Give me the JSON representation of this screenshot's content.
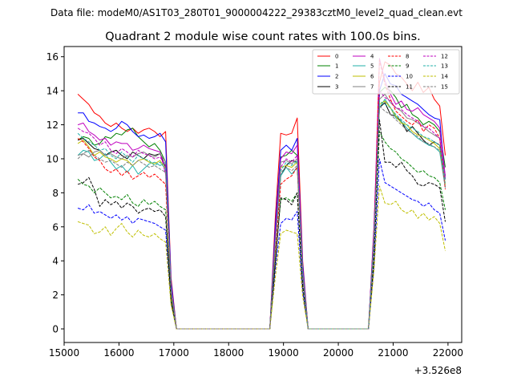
{
  "figure": {
    "suptitle": "Data file: modeM0/AS1T03_280T01_9000004222_29383cztM0_level2_quad_clean.evt",
    "title": "Quadrant 2 module wise count rates with 100.0s bins."
  },
  "chart_data": {
    "type": "line",
    "title": "Quadrant 2 module wise count rates with 100.0s bins.",
    "xlabel": "",
    "ylabel": "",
    "x_offset_label": "+3.526e8",
    "xlim": [
      15000,
      22250
    ],
    "ylim": [
      -0.8,
      16.6
    ],
    "xticks": [
      15000,
      16000,
      17000,
      18000,
      19000,
      20000,
      21000,
      22000
    ],
    "yticks": [
      0,
      2,
      4,
      6,
      8,
      10,
      12,
      14,
      16
    ],
    "xtick_labels": [
      "15000",
      "16000",
      "17000",
      "18000",
      "19000",
      "20000",
      "21000",
      "22000"
    ],
    "ytick_labels": [
      "0",
      "2",
      "4",
      "6",
      "8",
      "10",
      "12",
      "14",
      "16"
    ],
    "legend_position": "top-right",
    "x": [
      15250,
      15350,
      15450,
      15550,
      15650,
      15750,
      15850,
      15950,
      16050,
      16150,
      16250,
      16350,
      16450,
      16550,
      16650,
      16750,
      16850,
      16950,
      17050,
      17150,
      17250,
      17350,
      17450,
      17550,
      17650,
      17750,
      17850,
      17950,
      18050,
      18150,
      18250,
      18350,
      18450,
      18550,
      18650,
      18750,
      18850,
      18950,
      19050,
      19150,
      19250,
      19350,
      19450,
      19550,
      19650,
      19750,
      19850,
      19950,
      20050,
      20150,
      20250,
      20350,
      20450,
      20550,
      20650,
      20750,
      20850,
      20950,
      21050,
      21150,
      21250,
      21350,
      21450,
      21550,
      21650,
      21750,
      21850,
      21950
    ],
    "series": [
      {
        "name": "0",
        "color": "#ff0000",
        "dash": "solid",
        "values": [
          13.8,
          13.5,
          13.2,
          12.7,
          12.5,
          12.1,
          11.9,
          12.1,
          11.8,
          11.6,
          11.8,
          11.5,
          11.7,
          11.8,
          11.6,
          11.3,
          11.6,
          3.0,
          0,
          0,
          0,
          0,
          0,
          0,
          0,
          0,
          0,
          0,
          0,
          0,
          0,
          0,
          0,
          0,
          0,
          0,
          6.5,
          11.5,
          11.4,
          11.5,
          12.4,
          4.0,
          0,
          0,
          0,
          0,
          0,
          0,
          0,
          0,
          0,
          0,
          0,
          0,
          6.0,
          14.5,
          15.7,
          15.5,
          15.0,
          14.8,
          14.4,
          14.0,
          14.5,
          13.9,
          14.2,
          13.5,
          13.1,
          10.2
        ]
      },
      {
        "name": "1",
        "color": "#008000",
        "dash": "solid",
        "values": [
          11.1,
          11.3,
          11.2,
          10.8,
          10.9,
          11.3,
          11.2,
          11.5,
          11.4,
          11.7,
          11.8,
          11.3,
          11.0,
          10.7,
          10.9,
          10.5,
          9.8,
          2.5,
          0,
          0,
          0,
          0,
          0,
          0,
          0,
          0,
          0,
          0,
          0,
          0,
          0,
          0,
          0,
          0,
          0,
          0,
          5.5,
          10.1,
          10.2,
          10.5,
          10.2,
          3.5,
          0,
          0,
          0,
          0,
          0,
          0,
          0,
          0,
          0,
          0,
          0,
          0,
          5.5,
          13.9,
          14.2,
          14.0,
          13.6,
          13.0,
          13.2,
          12.6,
          12.4,
          12.0,
          12.2,
          12.0,
          11.6,
          9.5
        ]
      },
      {
        "name": "2",
        "color": "#0000ff",
        "dash": "solid",
        "values": [
          12.7,
          12.7,
          12.2,
          12.1,
          11.9,
          11.8,
          11.6,
          11.8,
          12.2,
          12.0,
          11.6,
          11.3,
          11.4,
          11.2,
          11.3,
          11.5,
          11.0,
          2.8,
          0,
          0,
          0,
          0,
          0,
          0,
          0,
          0,
          0,
          0,
          0,
          0,
          0,
          0,
          0,
          0,
          0,
          0,
          6.0,
          10.5,
          10.8,
          10.5,
          11.2,
          3.8,
          0,
          0,
          0,
          0,
          0,
          0,
          0,
          0,
          0,
          0,
          0,
          0,
          5.8,
          14.0,
          15.0,
          14.4,
          14.3,
          13.8,
          13.6,
          13.4,
          13.2,
          12.9,
          12.6,
          12.4,
          12.3,
          8.8
        ]
      },
      {
        "name": "3",
        "color": "#000000",
        "dash": "solid",
        "values": [
          11.1,
          11.2,
          10.9,
          10.6,
          10.5,
          10.2,
          10.4,
          10.5,
          10.2,
          10.0,
          10.4,
          10.2,
          10.0,
          10.3,
          10.2,
          10.3,
          9.5,
          2.4,
          0,
          0,
          0,
          0,
          0,
          0,
          0,
          0,
          0,
          0,
          0,
          0,
          0,
          0,
          0,
          0,
          0,
          0,
          5.2,
          9.0,
          9.6,
          9.9,
          9.8,
          3.3,
          0,
          0,
          0,
          0,
          0,
          0,
          0,
          0,
          0,
          0,
          0,
          0,
          5.2,
          13.0,
          13.3,
          12.6,
          12.5,
          12.2,
          11.6,
          11.9,
          11.5,
          11.1,
          10.8,
          11.0,
          10.8,
          9.0
        ]
      },
      {
        "name": "4",
        "color": "#bf00bf",
        "dash": "solid",
        "values": [
          12.0,
          12.1,
          11.6,
          11.4,
          11.1,
          11.2,
          10.8,
          11.0,
          10.9,
          10.9,
          10.5,
          10.6,
          10.8,
          10.6,
          10.5,
          10.4,
          9.1,
          2.5,
          0,
          0,
          0,
          0,
          0,
          0,
          0,
          0,
          0,
          0,
          0,
          0,
          0,
          0,
          0,
          0,
          0,
          0,
          5.5,
          10.0,
          10.4,
          10.3,
          10.8,
          3.5,
          0,
          0,
          0,
          0,
          0,
          0,
          0,
          0,
          0,
          0,
          0,
          0,
          5.7,
          15.9,
          14.6,
          13.8,
          13.2,
          13.4,
          12.9,
          12.8,
          13.0,
          12.6,
          12.4,
          12.2,
          11.8,
          9.0
        ]
      },
      {
        "name": "5",
        "color": "#20b2aa",
        "dash": "solid",
        "values": [
          10.2,
          10.5,
          10.4,
          9.9,
          10.0,
          10.3,
          9.8,
          9.4,
          9.6,
          9.2,
          9.6,
          9.1,
          9.4,
          9.7,
          9.8,
          9.6,
          9.8,
          2.3,
          0,
          0,
          0,
          0,
          0,
          0,
          0,
          0,
          0,
          0,
          0,
          0,
          0,
          0,
          0,
          0,
          0,
          0,
          5.0,
          9.0,
          9.5,
          9.1,
          9.5,
          3.2,
          0,
          0,
          0,
          0,
          0,
          0,
          0,
          0,
          0,
          0,
          0,
          0,
          5.0,
          13.0,
          13.5,
          13.0,
          12.4,
          12.2,
          11.8,
          11.5,
          11.2,
          11.0,
          10.8,
          10.7,
          10.4,
          8.3
        ]
      },
      {
        "name": "6",
        "color": "#bfbf00",
        "dash": "solid",
        "values": [
          10.9,
          11.1,
          10.7,
          10.2,
          10.4,
          10.1,
          10.0,
          9.8,
          10.0,
          9.9,
          9.6,
          9.9,
          10.0,
          9.8,
          9.7,
          9.9,
          9.4,
          2.3,
          0,
          0,
          0,
          0,
          0,
          0,
          0,
          0,
          0,
          0,
          0,
          0,
          0,
          0,
          0,
          0,
          0,
          0,
          5.0,
          9.5,
          9.6,
          9.5,
          9.8,
          3.3,
          0,
          0,
          0,
          0,
          0,
          0,
          0,
          0,
          0,
          0,
          0,
          0,
          5.2,
          13.2,
          13.4,
          13.0,
          12.5,
          12.1,
          12.0,
          11.6,
          11.4,
          11.3,
          11.1,
          10.9,
          10.6,
          8.5
        ]
      },
      {
        "name": "7",
        "color": "#808080",
        "dash": "solid",
        "values": [
          10.2,
          10.3,
          10.1,
          10.4,
          10.5,
          10.2,
          10.3,
          10.1,
          10.0,
          10.2,
          10.1,
          10.3,
          10.4,
          10.2,
          10.1,
          10.3,
          9.8,
          2.4,
          0,
          0,
          0,
          0,
          0,
          0,
          0,
          0,
          0,
          0,
          0,
          0,
          0,
          0,
          0,
          0,
          0,
          0,
          5.1,
          9.8,
          9.9,
          9.7,
          10.0,
          3.4,
          0,
          0,
          0,
          0,
          0,
          0,
          0,
          0,
          0,
          0,
          0,
          0,
          5.3,
          13.5,
          13.8,
          13.3,
          13.0,
          12.8,
          12.4,
          12.3,
          12.1,
          11.9,
          11.6,
          11.4,
          11.2,
          8.8
        ]
      },
      {
        "name": "8",
        "color": "#ff0000",
        "dash": "dashed",
        "values": [
          11.2,
          11.0,
          10.6,
          10.1,
          9.9,
          9.4,
          9.2,
          9.4,
          9.0,
          9.3,
          8.8,
          9.0,
          9.2,
          8.9,
          9.1,
          8.8,
          8.5,
          2.0,
          0,
          0,
          0,
          0,
          0,
          0,
          0,
          0,
          0,
          0,
          0,
          0,
          0,
          0,
          0,
          0,
          0,
          0,
          4.5,
          8.5,
          8.8,
          9.0,
          9.5,
          3.0,
          0,
          0,
          0,
          0,
          0,
          0,
          0,
          0,
          0,
          0,
          0,
          0,
          5.0,
          15.8,
          14.4,
          13.5,
          12.8,
          12.5,
          12.2,
          12.0,
          12.3,
          11.6,
          12.0,
          11.8,
          11.2,
          8.2
        ]
      },
      {
        "name": "9",
        "color": "#008000",
        "dash": "dashed",
        "values": [
          8.8,
          8.5,
          8.4,
          8.0,
          8.3,
          8.0,
          7.7,
          7.8,
          7.6,
          7.9,
          7.4,
          7.2,
          7.6,
          7.3,
          7.5,
          7.2,
          7.0,
          1.8,
          0,
          0,
          0,
          0,
          0,
          0,
          0,
          0,
          0,
          0,
          0,
          0,
          0,
          0,
          0,
          0,
          0,
          0,
          4.0,
          7.6,
          7.7,
          7.5,
          8.0,
          2.6,
          0,
          0,
          0,
          0,
          0,
          0,
          0,
          0,
          0,
          0,
          0,
          0,
          4.3,
          11.6,
          11.0,
          10.6,
          10.4,
          10.0,
          9.8,
          9.5,
          9.2,
          9.3,
          9.0,
          8.9,
          8.6,
          7.0
        ]
      },
      {
        "name": "10",
        "color": "#0000ff",
        "dash": "dashed",
        "values": [
          7.1,
          7.0,
          7.3,
          6.8,
          6.9,
          6.7,
          6.5,
          6.7,
          6.4,
          6.6,
          6.2,
          6.5,
          6.4,
          6.3,
          6.2,
          6.0,
          5.8,
          1.5,
          0,
          0,
          0,
          0,
          0,
          0,
          0,
          0,
          0,
          0,
          0,
          0,
          0,
          0,
          0,
          0,
          0,
          0,
          3.5,
          6.2,
          6.5,
          6.4,
          6.9,
          2.2,
          0,
          0,
          0,
          0,
          0,
          0,
          0,
          0,
          0,
          0,
          0,
          0,
          3.6,
          10.0,
          8.6,
          8.4,
          8.2,
          8.0,
          7.8,
          7.6,
          7.5,
          7.2,
          7.4,
          7.0,
          6.8,
          5.2
        ]
      },
      {
        "name": "11",
        "color": "#000000",
        "dash": "dashed",
        "values": [
          8.5,
          8.6,
          8.9,
          8.2,
          7.2,
          7.6,
          7.3,
          7.5,
          7.1,
          7.4,
          7.2,
          6.8,
          7.0,
          7.1,
          6.9,
          7.0,
          6.6,
          1.6,
          0,
          0,
          0,
          0,
          0,
          0,
          0,
          0,
          0,
          0,
          0,
          0,
          0,
          0,
          0,
          0,
          0,
          0,
          3.8,
          7.7,
          7.6,
          7.3,
          8.0,
          2.5,
          0,
          0,
          0,
          0,
          0,
          0,
          0,
          0,
          0,
          0,
          0,
          0,
          4.0,
          12.3,
          9.8,
          9.8,
          9.5,
          9.8,
          9.3,
          9.0,
          8.5,
          8.4,
          8.6,
          8.5,
          8.3,
          6.3
        ]
      },
      {
        "name": "12",
        "color": "#bf00bf",
        "dash": "dashed",
        "values": [
          11.8,
          11.6,
          11.5,
          11.2,
          10.8,
          11.0,
          10.5,
          10.3,
          10.6,
          10.4,
          10.1,
          10.5,
          10.3,
          10.2,
          10.0,
          10.1,
          9.6,
          2.4,
          0,
          0,
          0,
          0,
          0,
          0,
          0,
          0,
          0,
          0,
          0,
          0,
          0,
          0,
          0,
          0,
          0,
          0,
          5.3,
          9.5,
          10.0,
          9.8,
          10.2,
          3.3,
          0,
          0,
          0,
          0,
          0,
          0,
          0,
          0,
          0,
          0,
          0,
          0,
          5.4,
          14.0,
          13.6,
          13.4,
          13.0,
          12.9,
          12.6,
          12.4,
          12.2,
          11.9,
          11.8,
          11.5,
          11.2,
          8.8
        ]
      },
      {
        "name": "13",
        "color": "#20b2aa",
        "dash": "dashed",
        "values": [
          11.5,
          11.2,
          11.0,
          10.8,
          10.5,
          10.6,
          10.2,
          10.0,
          10.4,
          10.1,
          9.8,
          10.2,
          10.0,
          9.9,
          9.6,
          9.8,
          9.4,
          2.3,
          0,
          0,
          0,
          0,
          0,
          0,
          0,
          0,
          0,
          0,
          0,
          0,
          0,
          0,
          0,
          0,
          0,
          0,
          5.1,
          9.3,
          9.8,
          9.6,
          9.9,
          3.2,
          0,
          0,
          0,
          0,
          0,
          0,
          0,
          0,
          0,
          0,
          0,
          0,
          5.2,
          13.4,
          13.2,
          13.0,
          12.6,
          12.3,
          12.0,
          11.8,
          11.6,
          11.3,
          11.2,
          11.0,
          10.8,
          8.6
        ]
      },
      {
        "name": "14",
        "color": "#bfbf00",
        "dash": "dashed",
        "values": [
          6.3,
          6.2,
          6.1,
          5.6,
          5.7,
          6.0,
          5.5,
          5.9,
          6.2,
          5.7,
          5.4,
          5.8,
          5.5,
          5.4,
          5.6,
          5.3,
          5.1,
          1.4,
          0,
          0,
          0,
          0,
          0,
          0,
          0,
          0,
          0,
          0,
          0,
          0,
          0,
          0,
          0,
          0,
          0,
          0,
          3.0,
          5.6,
          5.8,
          5.7,
          5.6,
          1.9,
          0,
          0,
          0,
          0,
          0,
          0,
          0,
          0,
          0,
          0,
          0,
          0,
          3.4,
          8.4,
          7.4,
          7.3,
          7.5,
          7.0,
          6.8,
          7.0,
          6.5,
          6.8,
          6.4,
          6.6,
          6.2,
          4.6
        ]
      },
      {
        "name": "15",
        "color": "#808080",
        "dash": "dashed",
        "values": [
          10.0,
          10.3,
          10.5,
          10.2,
          10.0,
          9.8,
          9.9,
          9.7,
          9.5,
          9.8,
          9.6,
          9.9,
          9.7,
          9.5,
          9.6,
          9.4,
          9.2,
          2.2,
          0,
          0,
          0,
          0,
          0,
          0,
          0,
          0,
          0,
          0,
          0,
          0,
          0,
          0,
          0,
          0,
          0,
          0,
          4.9,
          9.2,
          9.5,
          9.3,
          9.6,
          3.1,
          0,
          0,
          0,
          0,
          0,
          0,
          0,
          0,
          0,
          0,
          0,
          0,
          5.0,
          13.1,
          12.8,
          12.6,
          12.3,
          12.0,
          11.7,
          11.5,
          11.3,
          11.0,
          10.9,
          10.7,
          10.5,
          8.4
        ]
      }
    ]
  }
}
